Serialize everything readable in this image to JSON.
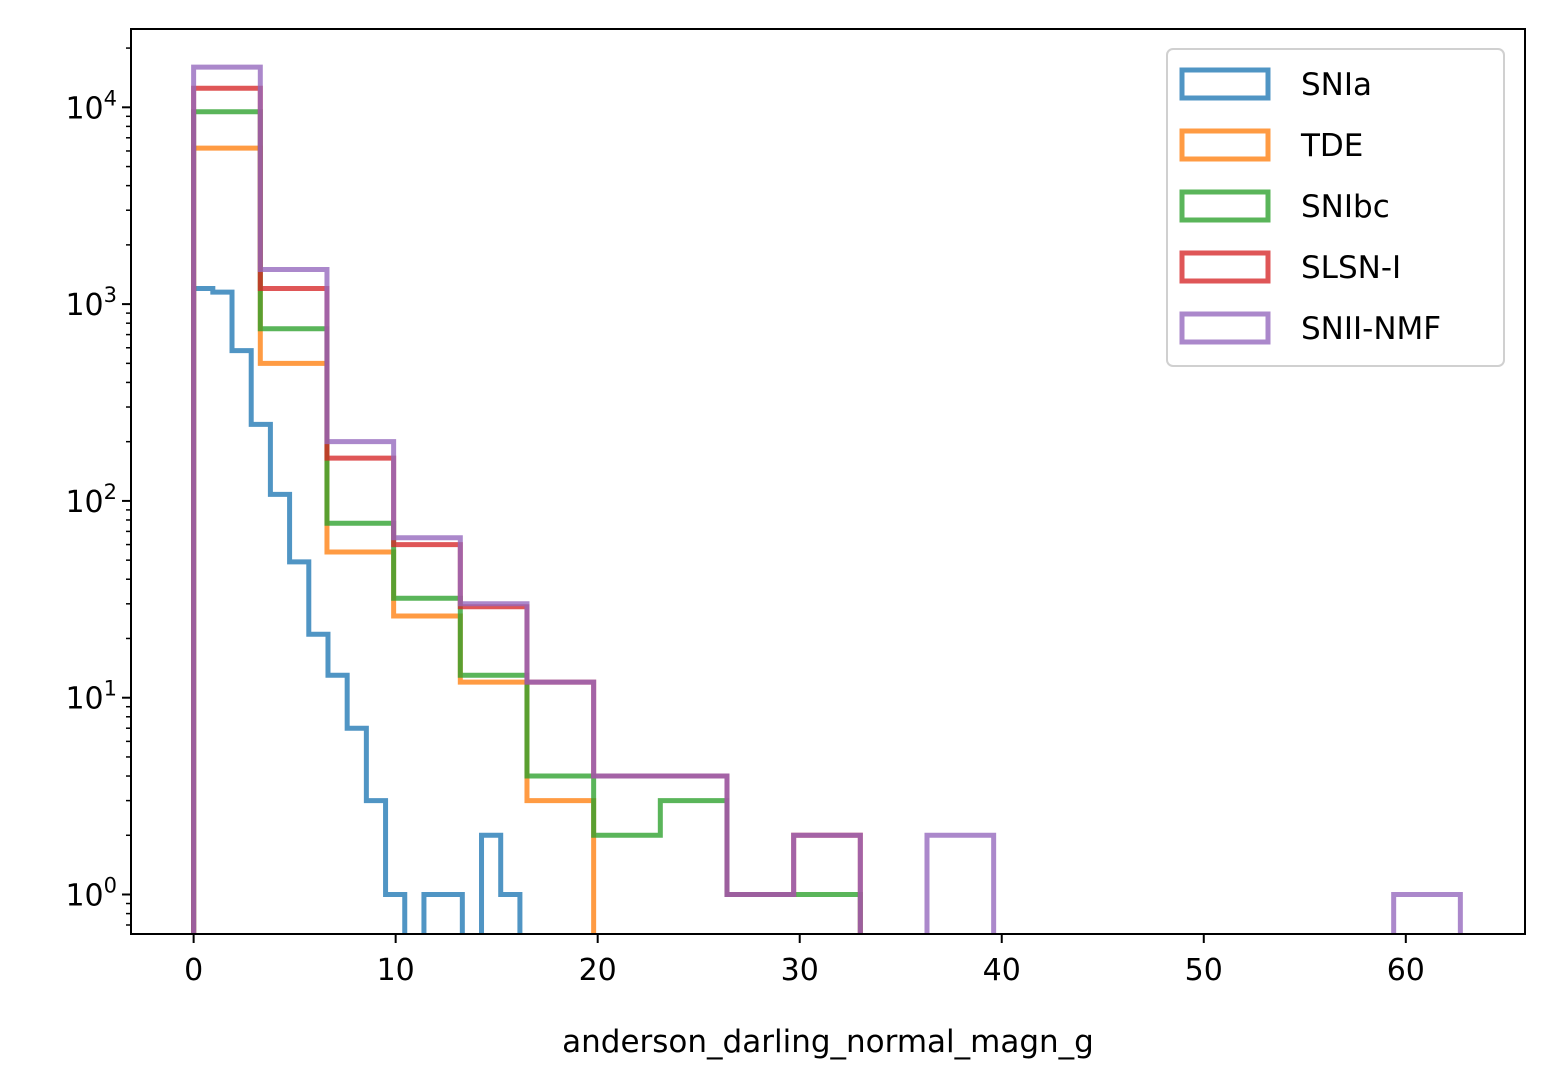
{
  "chart_data": {
    "type": "step-histogram",
    "xlabel": "anderson_darling_normal_magn_g",
    "ylabel": "",
    "yscale": "log",
    "xlim": [
      -3.1,
      65.9
    ],
    "ylim": [
      0.63,
      25000
    ],
    "x_ticks": [
      0,
      10,
      20,
      30,
      40,
      50,
      60
    ],
    "y_ticks": [
      {
        "value": 1,
        "base": "10",
        "exp": "0"
      },
      {
        "value": 10,
        "base": "10",
        "exp": "1"
      },
      {
        "value": 100,
        "base": "10",
        "exp": "2"
      },
      {
        "value": 1000,
        "base": "10",
        "exp": "3"
      },
      {
        "value": 10000,
        "base": "10",
        "exp": "4"
      }
    ],
    "legend_position": "top-right",
    "series": [
      {
        "name": "SNIa",
        "color": "#1f77b4",
        "edges": [
          0,
          0.95,
          1.9,
          2.85,
          3.8,
          4.75,
          5.7,
          6.65,
          7.6,
          8.55,
          9.5,
          10.45,
          11.4,
          12.35,
          13.3,
          14.25,
          15.2,
          16.15,
          17.1
        ],
        "counts": [
          1200,
          1150,
          580,
          245,
          108,
          49,
          21,
          13,
          7,
          3,
          1,
          0,
          1,
          1,
          0,
          2,
          1,
          0
        ]
      },
      {
        "name": "TDE",
        "color": "#ff7f0e",
        "edges": [
          0,
          3.3,
          6.6,
          9.9,
          13.2,
          16.5,
          19.8,
          23.1,
          26.4,
          29.7,
          33.0
        ],
        "counts": [
          6200,
          500,
          55,
          26,
          12,
          3,
          0,
          0,
          0,
          0
        ]
      },
      {
        "name": "SNIbc",
        "color": "#2ca02c",
        "edges": [
          0,
          3.3,
          6.6,
          9.9,
          13.2,
          16.5,
          19.8,
          23.1,
          26.4,
          29.7,
          33.0
        ],
        "counts": [
          9500,
          750,
          77,
          32,
          13,
          4,
          2,
          3,
          1,
          1
        ]
      },
      {
        "name": "SLSN-I",
        "color": "#d62728",
        "edges": [
          0,
          3.3,
          6.6,
          9.9,
          13.2,
          16.5,
          19.8,
          23.1,
          26.4,
          29.7,
          33.0
        ],
        "counts": [
          12500,
          1200,
          165,
          60,
          29,
          12,
          4,
          4,
          1,
          2
        ]
      },
      {
        "name": "SNII-NMF",
        "color": "#9467bd",
        "edges": [
          0,
          3.3,
          6.6,
          9.9,
          13.2,
          16.5,
          19.8,
          23.1,
          26.4,
          29.7,
          33.0,
          36.3,
          39.6,
          42.9,
          46.2,
          49.5,
          52.8,
          56.1,
          59.4,
          62.7
        ],
        "counts": [
          16000,
          1500,
          200,
          65,
          30,
          12,
          4,
          4,
          1,
          2,
          0,
          2,
          0,
          0,
          0,
          0,
          0,
          0,
          1
        ]
      }
    ]
  }
}
